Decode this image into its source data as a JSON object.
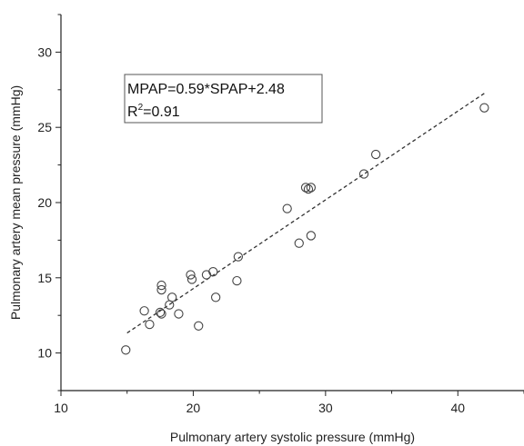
{
  "chart_data": {
    "type": "scatter",
    "xlabel": "Pulmonary artery systolic pressure (mmHg)",
    "ylabel": "Pulmonary artery mean pressure (mmHg)",
    "xlim": [
      10,
      45
    ],
    "ylim": [
      7.5,
      32.5
    ],
    "x_ticks": [
      10,
      20,
      30,
      40
    ],
    "y_ticks": [
      10,
      15,
      20,
      25,
      30
    ],
    "grid": false,
    "legend": "none",
    "annotation": {
      "equation": "MPAP=0.59*SPAP+2.48",
      "r2_prefix": "R",
      "r2_sup": "2",
      "r2_suffix": "=0.91",
      "placement": "top-left"
    },
    "fit_line": {
      "slope": 0.59,
      "intercept": 2.48,
      "x_range": [
        15,
        42
      ],
      "style": "dashed"
    },
    "points": [
      {
        "x": 14.9,
        "y": 10.2
      },
      {
        "x": 16.3,
        "y": 12.8
      },
      {
        "x": 16.7,
        "y": 11.9
      },
      {
        "x": 17.5,
        "y": 12.7
      },
      {
        "x": 17.6,
        "y": 12.6
      },
      {
        "x": 17.6,
        "y": 14.2
      },
      {
        "x": 17.6,
        "y": 14.5
      },
      {
        "x": 18.2,
        "y": 13.2
      },
      {
        "x": 18.4,
        "y": 13.7
      },
      {
        "x": 18.9,
        "y": 12.6
      },
      {
        "x": 19.8,
        "y": 15.2
      },
      {
        "x": 19.9,
        "y": 14.9
      },
      {
        "x": 20.4,
        "y": 11.8
      },
      {
        "x": 21.0,
        "y": 15.2
      },
      {
        "x": 21.5,
        "y": 15.4
      },
      {
        "x": 21.7,
        "y": 13.7
      },
      {
        "x": 23.3,
        "y": 14.8
      },
      {
        "x": 23.4,
        "y": 16.4
      },
      {
        "x": 27.1,
        "y": 19.6
      },
      {
        "x": 28.0,
        "y": 17.3
      },
      {
        "x": 28.5,
        "y": 21.0
      },
      {
        "x": 28.7,
        "y": 20.9
      },
      {
        "x": 28.9,
        "y": 21.0
      },
      {
        "x": 28.9,
        "y": 17.8
      },
      {
        "x": 32.9,
        "y": 21.9
      },
      {
        "x": 33.8,
        "y": 23.2
      },
      {
        "x": 42.0,
        "y": 26.3
      }
    ],
    "colors": {
      "marker": "#444444",
      "axis": "#222222",
      "fit": "#333333"
    }
  }
}
